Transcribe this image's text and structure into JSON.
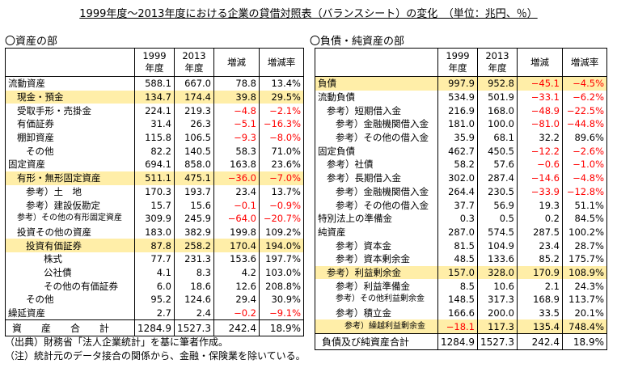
{
  "title": "1999年度～2013年度における企業の貸借対照表（バランスシート）の変化　（単位：兆円、％）",
  "assets": {
    "section_label": "〇資産の部",
    "headers": [
      "",
      "1999\n年度",
      "2013\n年度",
      "増減",
      "増減率"
    ],
    "rows": [
      {
        "label": "流動資産",
        "indent": 0,
        "v1999": "588.1",
        "v2013": "667.0",
        "diff": "78.8",
        "rate": "13.4%",
        "highlight": false
      },
      {
        "label": "現金・預金",
        "indent": 1,
        "v1999": "134.7",
        "v2013": "174.4",
        "diff": "39.8",
        "rate": "29.5%",
        "highlight": true
      },
      {
        "label": "受取手形・売掛金",
        "indent": 1,
        "v1999": "224.1",
        "v2013": "219.3",
        "diff": "−4.8",
        "rate": "−2.1%",
        "highlight": false
      },
      {
        "label": "有価証券",
        "indent": 1,
        "v1999": "31.4",
        "v2013": "26.3",
        "diff": "−5.1",
        "rate": "−16.3%",
        "highlight": false
      },
      {
        "label": "棚卸資産",
        "indent": 1,
        "v1999": "115.8",
        "v2013": "106.5",
        "diff": "−9.3",
        "rate": "−8.0%",
        "highlight": false
      },
      {
        "label": "その他",
        "indent": 2,
        "v1999": "82.2",
        "v2013": "140.5",
        "diff": "58.3",
        "rate": "71.0%",
        "highlight": false
      },
      {
        "label": "固定資産",
        "indent": 0,
        "v1999": "694.1",
        "v2013": "858.0",
        "diff": "163.8",
        "rate": "23.6%",
        "highlight": false
      },
      {
        "label": "有形・無形固定資産",
        "indent": 1,
        "v1999": "511.1",
        "v2013": "475.1",
        "diff": "−36.0",
        "rate": "−7.0%",
        "highlight": true
      },
      {
        "label": "参考）土　地",
        "indent": 2,
        "v1999": "170.3",
        "v2013": "193.7",
        "diff": "23.4",
        "rate": "13.7%",
        "highlight": false
      },
      {
        "label": "参考）建設仮勘定",
        "indent": 2,
        "v1999": "15.7",
        "v2013": "15.6",
        "diff": "−0.1",
        "rate": "−0.9%",
        "highlight": false
      },
      {
        "label": "参考）その他の有形固定資産",
        "indent": 1,
        "v1999": "309.9",
        "v2013": "245.9",
        "diff": "−64.0",
        "rate": "−20.7%",
        "highlight": false,
        "small": true
      },
      {
        "label": "投資その他の資産",
        "indent": 1,
        "v1999": "183.0",
        "v2013": "382.9",
        "diff": "199.8",
        "rate": "109.2%",
        "highlight": false
      },
      {
        "label": "投資有価証券",
        "indent": 2,
        "v1999": "87.8",
        "v2013": "258.2",
        "diff": "170.4",
        "rate": "194.0%",
        "highlight": true
      },
      {
        "label": "株式",
        "indent": 4,
        "v1999": "77.7",
        "v2013": "231.3",
        "diff": "153.6",
        "rate": "197.7%",
        "highlight": false
      },
      {
        "label": "公社債",
        "indent": 4,
        "v1999": "4.1",
        "v2013": "8.3",
        "diff": "4.2",
        "rate": "103.0%",
        "highlight": false
      },
      {
        "label": "その他の有価証券",
        "indent": 4,
        "v1999": "6.0",
        "v2013": "18.6",
        "diff": "12.6",
        "rate": "208.8%",
        "highlight": false
      },
      {
        "label": "その他",
        "indent": 2,
        "v1999": "95.2",
        "v2013": "124.6",
        "diff": "29.4",
        "rate": "30.9%",
        "highlight": false
      },
      {
        "label": "繰延資産",
        "indent": 0,
        "v1999": "2.7",
        "v2013": "2.4",
        "diff": "−0.2",
        "rate": "−9.1%",
        "highlight": false
      }
    ],
    "total": {
      "label": "資　　産　　合　　計",
      "v1999": "1284.9",
      "v2013": "1527.3",
      "diff": "242.4",
      "rate": "18.9%"
    }
  },
  "liabilities": {
    "section_label": "〇負債・純資産の部",
    "headers": [
      "",
      "1999\n年度",
      "2013\n年度",
      "増減",
      "増減率"
    ],
    "rows": [
      {
        "label": "負債",
        "indent": 0,
        "v1999": "997.9",
        "v2013": "952.8",
        "diff": "−45.1",
        "rate": "−4.5%",
        "highlight": true
      },
      {
        "label": "流動負債",
        "indent": 0,
        "v1999": "534.9",
        "v2013": "501.9",
        "diff": "−33.1",
        "rate": "−6.2%",
        "highlight": false
      },
      {
        "label": "参考）短期借入金",
        "indent": 1,
        "v1999": "216.9",
        "v2013": "168.0",
        "diff": "−48.9",
        "rate": "−22.5%",
        "highlight": false
      },
      {
        "label": "参考）金融機関借入金",
        "indent": 2,
        "v1999": "181.0",
        "v2013": "100.0",
        "diff": "−81.0",
        "rate": "−44.8%",
        "highlight": false
      },
      {
        "label": "参考）その他の借入金",
        "indent": 2,
        "v1999": "35.9",
        "v2013": "68.1",
        "diff": "32.2",
        "rate": "89.6%",
        "highlight": false
      },
      {
        "label": "固定負債",
        "indent": 0,
        "v1999": "462.7",
        "v2013": "450.5",
        "diff": "−12.2",
        "rate": "−2.6%",
        "highlight": false
      },
      {
        "label": "参考）社債",
        "indent": 1,
        "v1999": "58.2",
        "v2013": "57.6",
        "diff": "−0.6",
        "rate": "−1.0%",
        "highlight": false
      },
      {
        "label": "参考）長期借入金",
        "indent": 1,
        "v1999": "302.0",
        "v2013": "287.4",
        "diff": "−14.6",
        "rate": "−4.8%",
        "highlight": false
      },
      {
        "label": "参考）金融機関借入金",
        "indent": 2,
        "v1999": "264.4",
        "v2013": "230.5",
        "diff": "−33.9",
        "rate": "−12.8%",
        "highlight": false
      },
      {
        "label": "参考）その他の借入金",
        "indent": 2,
        "v1999": "37.7",
        "v2013": "56.9",
        "diff": "19.3",
        "rate": "51.1%",
        "highlight": false
      },
      {
        "label": "特別法上の準備金",
        "indent": 0,
        "v1999": "0.3",
        "v2013": "0.5",
        "diff": "0.2",
        "rate": "84.5%",
        "highlight": false
      },
      {
        "label": "純資産",
        "indent": 0,
        "v1999": "287.0",
        "v2013": "574.5",
        "diff": "287.5",
        "rate": "100.2%",
        "highlight": false
      },
      {
        "label": "参考）資本金",
        "indent": 2,
        "v1999": "81.5",
        "v2013": "104.9",
        "diff": "23.4",
        "rate": "28.7%",
        "highlight": false
      },
      {
        "label": "参考）資本剰余金",
        "indent": 2,
        "v1999": "48.5",
        "v2013": "133.6",
        "diff": "85.2",
        "rate": "175.7%",
        "highlight": false
      },
      {
        "label": "参考）利益剰余金",
        "indent": 1,
        "v1999": "157.0",
        "v2013": "328.0",
        "diff": "170.9",
        "rate": "108.9%",
        "highlight": true
      },
      {
        "label": "参考）利益準備金",
        "indent": 2,
        "v1999": "8.5",
        "v2013": "10.6",
        "diff": "2.1",
        "rate": "24.3%",
        "highlight": false
      },
      {
        "label": "参考）その他利益剰余金",
        "indent": 2,
        "v1999": "148.5",
        "v2013": "317.3",
        "diff": "168.9",
        "rate": "113.7%",
        "highlight": false,
        "small": true
      },
      {
        "label": "参考）積立金",
        "indent": 2,
        "v1999": "166.6",
        "v2013": "200.0",
        "diff": "33.5",
        "rate": "20.1%",
        "highlight": false
      },
      {
        "label": "参考）繰越利益剰余金",
        "indent": 3,
        "v1999": "−18.1",
        "v2013": "117.3",
        "diff": "135.4",
        "rate": "748.4%",
        "highlight": true,
        "small": true
      }
    ],
    "total": {
      "label": "負債及び純資産合計",
      "v1999": "1284.9",
      "v2013": "1527.3",
      "diff": "242.4",
      "rate": "18.9%"
    }
  },
  "notes": [
    "（出典）財務省「法人企業統計」を基に筆者作成。",
    "（注）統計元のデータ接合の関係から、金融・保険業を除いている。"
  ]
}
